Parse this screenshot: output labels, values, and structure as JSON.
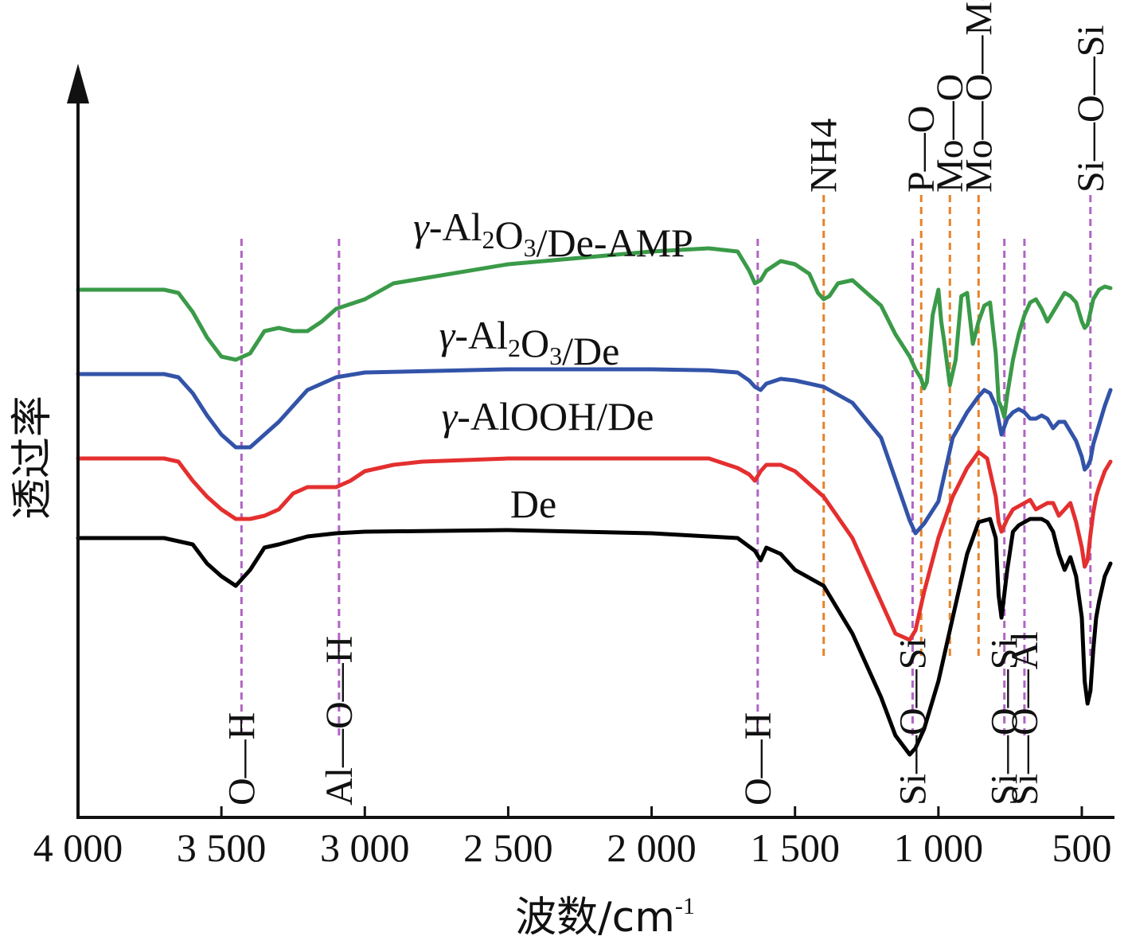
{
  "chart_data": {
    "type": "line",
    "title": "",
    "xlabel": "波数/cm",
    "xlabel_sup": "-1",
    "ylabel": "透过率",
    "xlim": [
      4000,
      400
    ],
    "x_reversed": true,
    "x_ticks": [
      4000,
      3500,
      3000,
      2500,
      2000,
      1500,
      1000,
      500
    ],
    "x_tick_labels": [
      "4 000",
      "3 500",
      "3 000",
      "2 500",
      "2 000",
      "1 500",
      "1 000",
      "500"
    ],
    "y_ticks_shown": false,
    "grid": false,
    "legend": "labels placed next to curves",
    "series": [
      {
        "name": "De",
        "color": "#000000",
        "x": [
          4000,
          3700,
          3600,
          3550,
          3500,
          3450,
          3400,
          3350,
          3300,
          3200,
          3100,
          3000,
          2500,
          2000,
          1800,
          1700,
          1640,
          1620,
          1600,
          1550,
          1500,
          1400,
          1300,
          1200,
          1150,
          1100,
          1080,
          1050,
          1000,
          950,
          900,
          860,
          820,
          800,
          790,
          780,
          760,
          740,
          720,
          700,
          680,
          660,
          640,
          620,
          600,
          580,
          560,
          540,
          520,
          500,
          490,
          480,
          470,
          460,
          450,
          440,
          420,
          400
        ],
        "y": [
          0.0,
          0.0,
          -2,
          -8,
          -12,
          -15,
          -10,
          -3,
          -2,
          0.5,
          1.5,
          2,
          2.5,
          1.5,
          0.5,
          0,
          -4,
          -7,
          -3,
          -5,
          -10,
          -15,
          -30,
          -50,
          -62,
          -68,
          -66,
          -60,
          -45,
          -25,
          -5,
          5,
          6,
          0,
          -18,
          -25,
          -10,
          2,
          4,
          5,
          6,
          6,
          6,
          5,
          2,
          -5,
          -10,
          -6,
          -12,
          -25,
          -45,
          -52,
          -48,
          -35,
          -25,
          -20,
          -12,
          -8
        ]
      },
      {
        "name": "γ-AlOOH/De",
        "color": "#e42f2f",
        "x": [
          4000,
          3700,
          3650,
          3600,
          3550,
          3500,
          3450,
          3400,
          3350,
          3300,
          3250,
          3200,
          3100,
          3050,
          3000,
          2900,
          2800,
          2500,
          2000,
          1800,
          1700,
          1660,
          1640,
          1620,
          1600,
          1550,
          1500,
          1400,
          1300,
          1200,
          1150,
          1100,
          1080,
          1050,
          1000,
          950,
          900,
          860,
          830,
          800,
          790,
          780,
          770,
          760,
          740,
          720,
          700,
          680,
          660,
          640,
          620,
          600,
          580,
          560,
          540,
          520,
          500,
          490,
          480,
          470,
          460,
          450,
          440,
          420,
          400
        ],
        "y": [
          0,
          0,
          -1,
          -7,
          -12,
          -16,
          -19,
          -19,
          -18,
          -16,
          -11,
          -9,
          -9,
          -7,
          -4,
          -2,
          -1,
          0,
          0,
          0,
          -3,
          -5,
          -7,
          -4,
          -2,
          -2,
          -4,
          -12,
          -25,
          -45,
          -55,
          -57,
          -54,
          -42,
          -25,
          -12,
          -3,
          2,
          0,
          -12,
          -20,
          -23,
          -21,
          -19,
          -16,
          -15,
          -14,
          -13,
          -16,
          -15,
          -14,
          -14,
          -18,
          -16,
          -14,
          -20,
          -28,
          -34,
          -32,
          -24,
          -17,
          -12,
          -9,
          -4,
          -1
        ]
      },
      {
        "name": "γ-Al2O3/De",
        "color": "#3253a8",
        "x": [
          4000,
          3700,
          3650,
          3600,
          3550,
          3500,
          3450,
          3400,
          3300,
          3200,
          3100,
          3000,
          2500,
          2000,
          1800,
          1700,
          1660,
          1640,
          1620,
          1600,
          1550,
          1500,
          1400,
          1300,
          1200,
          1150,
          1100,
          1080,
          1050,
          1000,
          950,
          900,
          860,
          840,
          820,
          800,
          780,
          760,
          740,
          720,
          700,
          680,
          660,
          640,
          620,
          600,
          580,
          560,
          540,
          520,
          500,
          490,
          480,
          470,
          460,
          440,
          420,
          400
        ],
        "y": [
          0,
          0,
          -1,
          -6,
          -13,
          -19,
          -23,
          -23,
          -15,
          -5,
          -1,
          0.5,
          1.5,
          1.5,
          1.2,
          0.5,
          -2,
          -4,
          -5,
          -3,
          -1.5,
          -2,
          -4,
          -9,
          -20,
          -33,
          -46,
          -50,
          -47,
          -40,
          -20,
          -12,
          -7,
          -5,
          -6,
          -10,
          -19,
          -14,
          -12,
          -11,
          -12,
          -14,
          -14,
          -13,
          -14,
          -17,
          -15,
          -15,
          -18,
          -21,
          -26,
          -30,
          -29,
          -27,
          -22,
          -16,
          -10,
          -5
        ]
      },
      {
        "name": "γ-Al2O3/De-AMP",
        "color": "#3a9a48",
        "x": [
          4000,
          3700,
          3650,
          3600,
          3550,
          3500,
          3450,
          3400,
          3350,
          3300,
          3250,
          3200,
          3150,
          3100,
          3000,
          2900,
          2500,
          2000,
          1800,
          1700,
          1660,
          1640,
          1620,
          1600,
          1550,
          1500,
          1450,
          1420,
          1400,
          1380,
          1350,
          1300,
          1200,
          1150,
          1100,
          1080,
          1060,
          1050,
          1040,
          1020,
          1000,
          990,
          980,
          960,
          940,
          920,
          900,
          880,
          860,
          840,
          820,
          800,
          790,
          780,
          770,
          760,
          740,
          720,
          700,
          680,
          660,
          640,
          620,
          600,
          580,
          560,
          540,
          520,
          500,
          490,
          480,
          470,
          460,
          440,
          420,
          400
        ],
        "y": [
          0,
          0,
          -1,
          -7,
          -15,
          -21,
          -22,
          -20,
          -13,
          -12,
          -13,
          -13,
          -10,
          -6,
          -3,
          2,
          8,
          12,
          13,
          12,
          6,
          2,
          3,
          6,
          9,
          8,
          5,
          -1,
          -3,
          -2,
          2,
          3,
          -5,
          -14,
          -21,
          -25,
          -28,
          -31,
          -29,
          -8,
          0,
          -10,
          -16,
          -30,
          -22,
          -2,
          -1,
          -17,
          -10,
          -5,
          -4,
          -20,
          -35,
          -37,
          -40,
          -33,
          -22,
          -14,
          -8,
          -4,
          -3,
          -6,
          -10,
          -7,
          -4,
          -1,
          -2,
          -4,
          -10,
          -12,
          -11,
          -7,
          -3,
          0,
          1,
          0.5
        ]
      }
    ],
    "series_labels": [
      {
        "series": "γ-Al2O3/De-AMP",
        "parts": [
          "γ",
          "-Al",
          "2",
          "O",
          "3",
          "/De-AMP"
        ]
      },
      {
        "series": "γ-Al2O3/De",
        "parts": [
          "γ",
          "-Al",
          "2",
          "O",
          "3",
          "/De"
        ]
      },
      {
        "series": "γ-AlOOH/De",
        "parts": [
          "γ",
          "-AlOOH/De"
        ]
      },
      {
        "series": "De",
        "parts": [
          "De"
        ]
      }
    ],
    "band_markers": [
      {
        "x": 3430,
        "label": "O—H",
        "color": "#b065c4",
        "label_position": "bottom"
      },
      {
        "x": 3090,
        "label": "Al—O—H",
        "color": "#b065c4",
        "label_position": "bottom"
      },
      {
        "x": 1630,
        "label": "O—H",
        "color": "#b065c4",
        "label_position": "bottom"
      },
      {
        "x": 1400,
        "label": "NH4",
        "color": "#e6822a",
        "label_position": "top"
      },
      {
        "x": 1090,
        "label": "Si—O—Si",
        "color": "#b065c4",
        "label_position": "bottom"
      },
      {
        "x": 1060,
        "label": "P—O",
        "color": "#e6822a",
        "label_position": "top"
      },
      {
        "x": 960,
        "label": "Mo—O",
        "color": "#e6822a",
        "label_position": "top"
      },
      {
        "x": 860,
        "label": "Mo—O—Mo",
        "color": "#e6822a",
        "label_position": "top"
      },
      {
        "x": 770,
        "label": "Si—O—Si",
        "color": "#b065c4",
        "label_position": "bottom"
      },
      {
        "x": 700,
        "label": "Si—O—Al",
        "color": "#b065c4",
        "label_position": "bottom"
      },
      {
        "x": 470,
        "label": "Si—O—Si",
        "color": "#b065c4",
        "label_position": "top"
      }
    ]
  }
}
